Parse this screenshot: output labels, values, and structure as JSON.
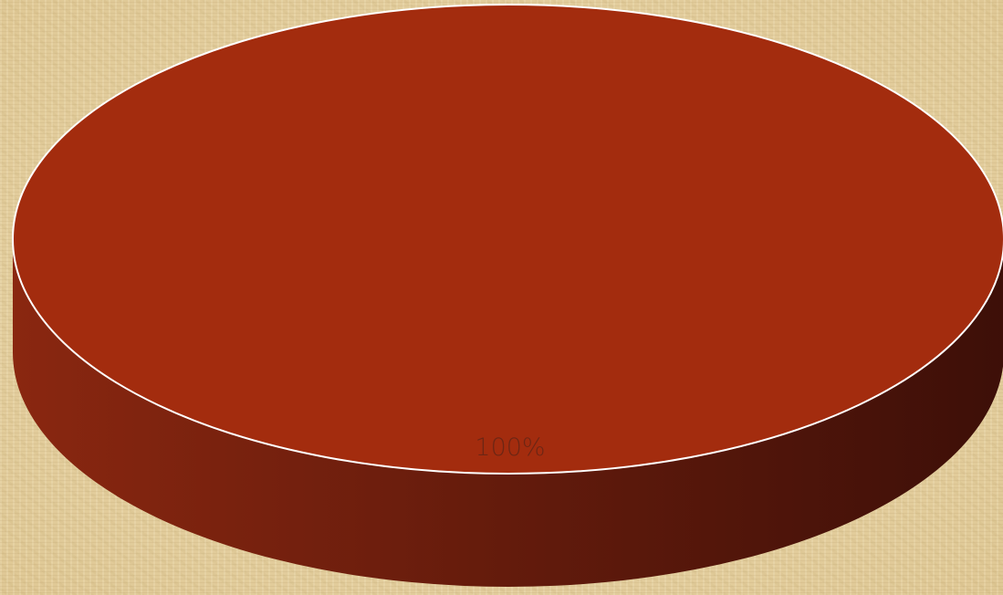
{
  "chart_data": {
    "type": "pie",
    "title": "",
    "categories": [
      ""
    ],
    "values": [
      100
    ],
    "labels": [
      "100%"
    ],
    "style": "3d",
    "legend": "none"
  },
  "colors": {
    "slice_top": "#a32c0e",
    "slice_side_light": "#8a2710",
    "slice_side_dark": "#3d0f08",
    "slice_outline": "#ffffff",
    "label_text": "#5b2417"
  }
}
